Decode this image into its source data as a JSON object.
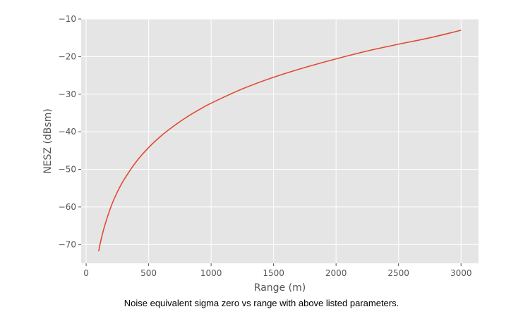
{
  "chart_data": {
    "type": "line",
    "title": "",
    "xlabel": "Range (m)",
    "ylabel": "NESZ (dBsm)",
    "xlim": [
      -40,
      3140
    ],
    "ylim": [
      -75,
      -10
    ],
    "xticks": [
      0,
      500,
      1000,
      1500,
      2000,
      2500,
      3000
    ],
    "yticks": [
      -10,
      -20,
      -30,
      -40,
      -50,
      -60,
      -70
    ],
    "xtick_labels": [
      "0",
      "500",
      "1000",
      "1500",
      "2000",
      "2500",
      "3000"
    ],
    "ytick_labels": [
      "−10",
      "−20",
      "−30",
      "−40",
      "−50",
      "−60",
      "−70"
    ],
    "grid": true,
    "style": "ggplot",
    "background_color": "#e5e5e5",
    "grid_color": "#ffffff",
    "series": [
      {
        "color": "#e24a33",
        "x": [
          100,
          120,
          150,
          200,
          250,
          300,
          400,
          500,
          600,
          700,
          800,
          900,
          1000,
          1250,
          1500,
          1750,
          2000,
          2250,
          2500,
          2750,
          3000
        ],
        "y": [
          -71.8,
          -68.6,
          -64.8,
          -59.8,
          -56.0,
          -52.9,
          -48.0,
          -44.2,
          -41.1,
          -38.5,
          -36.2,
          -34.2,
          -32.4,
          -28.6,
          -25.5,
          -22.9,
          -20.6,
          -18.5,
          -16.7,
          -15.0,
          -13.0
        ]
      }
    ]
  },
  "caption": "Noise equivalent sigma zero vs range with above listed parameters."
}
